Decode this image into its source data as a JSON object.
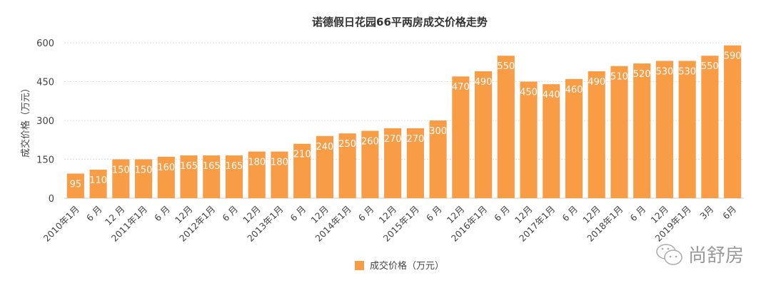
{
  "chart_data": {
    "type": "bar",
    "title": "诺德假日花园66平两房成交价格走势",
    "ylabel": "成交价格（万元）",
    "xlabel": "",
    "ylim": [
      0,
      600
    ],
    "yticks": [
      0,
      150,
      300,
      450,
      600
    ],
    "grid": true,
    "legend": "bottom",
    "bar_color": "#F89C45",
    "categories": [
      "2010年1月",
      "6 月",
      "12 月",
      "2011年1月",
      "6 月",
      "12月",
      "2012年1月",
      "6 月",
      "12月",
      "2013年1月",
      "6 月",
      "12月",
      "2014年1月",
      "6 月",
      "12月",
      "2015年1月",
      "6 月",
      "12月",
      "2016年1月",
      "6 月",
      "12月",
      "2017年1月",
      "6 月",
      "12月",
      "2018年1月",
      "6 月",
      "12月",
      "2019年1月",
      "3月",
      "6月"
    ],
    "series": [
      {
        "name": "成交价格（万元）",
        "values": [
          95,
          110,
          150,
          150,
          160,
          165,
          165,
          165,
          180,
          180,
          210,
          240,
          250,
          260,
          270,
          270,
          300,
          470,
          490,
          550,
          450,
          440,
          460,
          490,
          510,
          520,
          530,
          530,
          550,
          590
        ]
      }
    ]
  },
  "watermark": {
    "text": "尚舒房",
    "icon": "wechat-icon"
  }
}
